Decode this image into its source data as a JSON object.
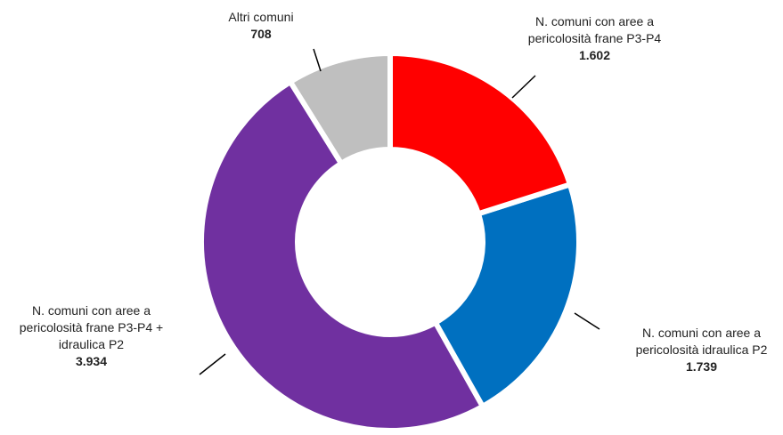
{
  "chart_data": {
    "type": "donut",
    "categories": [
      "N. comuni con aree a pericolosità frane P3-P4",
      "N. comuni con aree a pericolosità idraulica P2",
      "N. comuni con aree a pericolosità frane P3-P4 + idraulica P2",
      "Altri comuni"
    ],
    "values": [
      1602,
      1739,
      3934,
      708
    ],
    "value_labels": [
      "1.602",
      "1.739",
      "3.934",
      "708"
    ],
    "colors": [
      "#ff0000",
      "#0070c0",
      "#7030a0",
      "#bfbfbf"
    ]
  }
}
